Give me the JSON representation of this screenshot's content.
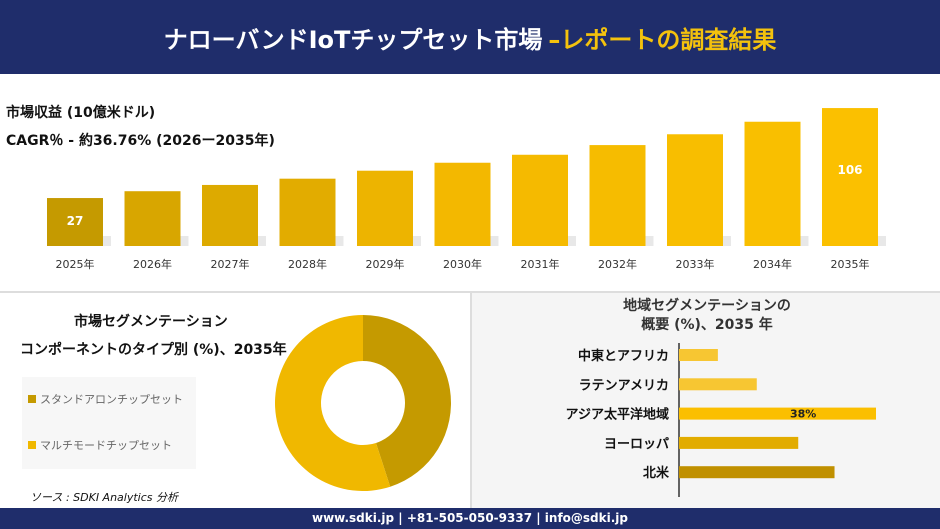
{
  "header": {
    "title": "ナローバンドIoTチップセット市場",
    "title_accent": "–レポートの調査結果"
  },
  "colors": {
    "navy": "#1f2d6b",
    "gold_dark": "#c59a00",
    "gold": "#e2ac00",
    "gold_light": "#f6c200"
  },
  "chart_data": [
    {
      "type": "bar",
      "title": "市場収益 (10億米ドル)",
      "subtitle": "CAGR％ - 約36.76% (2026ー2035年)",
      "categories": [
        "2025年",
        "2026年",
        "2027年",
        "2028年",
        "2029年",
        "2030年",
        "2031年",
        "2032年",
        "2033年",
        "2034年",
        "2035年"
      ],
      "values": [
        27,
        33,
        38.5,
        44,
        51,
        58,
        65,
        73.5,
        83,
        94,
        106
      ],
      "data_labels": {
        "0": "27",
        "10": "106"
      }
    },
    {
      "type": "pie",
      "variant": "donut",
      "title": "市場セグメンテーション",
      "subtitle": "コンポーネントのタイプ別 (%)、2035年",
      "slices": [
        {
          "name": "スタンドアロンチップセット",
          "value": 45,
          "color": "#c59a00"
        },
        {
          "name": "マルチモードチップセット",
          "value": 55,
          "color": "#f0b800"
        }
      ]
    },
    {
      "type": "bar",
      "orientation": "horizontal",
      "title": "地域セグメンテーションの",
      "subtitle": "概要 (%)、2035 年",
      "categories": [
        "中東とアフリカ",
        "ラテンアメリカ",
        "アジア太平洋地域",
        "ヨーロッパ",
        "北米"
      ],
      "values": [
        7.5,
        15,
        38,
        23,
        30
      ],
      "colors": [
        "#f7c632",
        "#f7c632",
        "#fbbf00",
        "#e2ac00",
        "#c09000"
      ],
      "data_labels": {
        "2": "38%"
      }
    }
  ],
  "source": "ソース : SDKI Analytics 分析",
  "footer": "www.sdki.jp | +81-505-050-9337 | info@sdki.jp"
}
